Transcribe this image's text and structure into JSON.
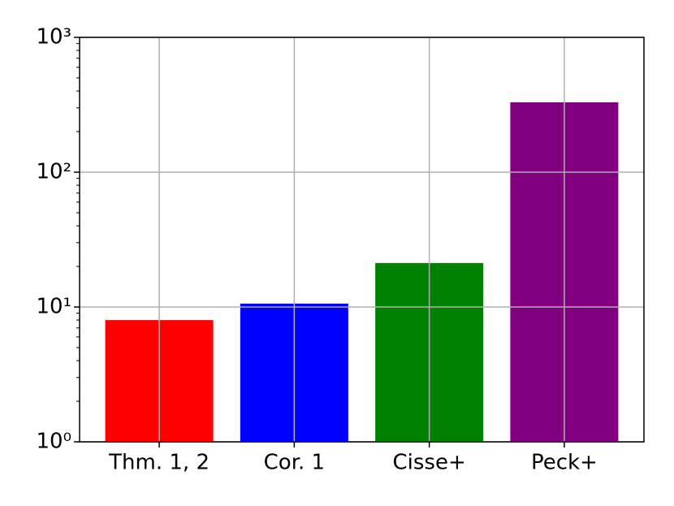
{
  "chart_data": {
    "type": "bar",
    "categories": [
      "Thm. 1, 2",
      "Cor. 1",
      "Cisse+",
      "Peck+"
    ],
    "values": [
      8.0,
      10.6,
      21.2,
      330
    ],
    "colors": [
      "#ff0000",
      "#0000ff",
      "#008000",
      "#800080"
    ],
    "ylim": [
      1,
      1000
    ],
    "yticks": [
      {
        "value": 1,
        "label": "10⁰"
      },
      {
        "value": 10,
        "label": "10¹"
      },
      {
        "value": 100,
        "label": "10²"
      },
      {
        "value": 1000,
        "label": "10³"
      }
    ],
    "log_y": true,
    "grid": true
  }
}
